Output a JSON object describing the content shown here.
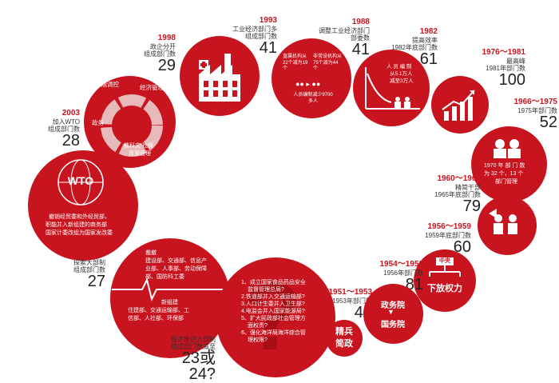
{
  "colors": {
    "red": "#c8141e",
    "dark": "#222222"
  },
  "events": {
    "e1993": {
      "year": "1993",
      "desc1": "工业经济部门多",
      "desc2": "组成部门数",
      "count": "41",
      "icon": "factory-icon"
    },
    "e1998": {
      "year": "1998",
      "desc1": "政企分开",
      "desc2": "组成部门数",
      "count": "29",
      "wheel": {
        "top": "宏观调控",
        "right": "经济管理",
        "left": "政务",
        "bottom1": "教科文 社保",
        "bottom2": "资源管理"
      }
    },
    "e1988": {
      "year": "1988",
      "desc1": "调整工业经济部门",
      "desc2": "部委数",
      "count": "41",
      "c1": "直属机构从22个减为19个",
      "c2": "非常设机构从75个减为44个",
      "c3": "人员编制减少9700多人"
    },
    "e1982": {
      "year": "1982",
      "desc1": "提高效率",
      "desc2": "1982年底部门数",
      "count": "61",
      "c1": "人 员 编 制",
      "c2": "从5.1万人",
      "c3": "减至3万人"
    },
    "e1976": {
      "year": "1976～1981",
      "desc1": "最高峰",
      "desc2": "1981年部门数",
      "count": "100"
    },
    "e1966": {
      "year": "1966～1975",
      "desc1": "1975年部门数",
      "count": "52",
      "c1": "1970 年 部 门 数",
      "c2": "为 32 个，13 个",
      "c3": "部门管理"
    },
    "e1960": {
      "year": "1960～1965",
      "desc1": "精简干部",
      "desc2": "1965年底部门数",
      "count": "79"
    },
    "e1956": {
      "year": "1956～1959",
      "desc1": "1959年底部门数",
      "count": "60"
    },
    "e1954": {
      "year": "1954～1956",
      "desc1": "1956年部门数",
      "count": "81",
      "box": "中央",
      "text": "下放权力"
    },
    "e1951": {
      "year": "1951～1953",
      "desc1": "1953年部门数",
      "count": "42",
      "b1": "政务院",
      "b2": "国务院",
      "side": "精兵简政"
    },
    "e2003": {
      "year": "2003",
      "desc1": "加入WTO",
      "desc2": "组成部门数",
      "count": "28",
      "globe": "WTO",
      "l1": "撤销经贸委和外经贸部，",
      "l2": "职能并入新组建的商务部",
      "l3": "国家计委改组为国家发改委"
    },
    "e2008": {
      "year": "2008",
      "desc1": "探索大部制",
      "desc2": "组成部门数",
      "count": "27",
      "t1": "裁撤",
      "t2": "建设部、交通部、信息产",
      "t3": "业部、人事部、劳动保障",
      "t4": "部、国防科工委",
      "n1": "新组建",
      "n2": "住建部、交通运输部、工",
      "n3": "信部、人社部、环保部"
    },
    "e2013": {
      "year": "2013",
      "desc1": "稳步推进大部制",
      "desc2": "组成部门数减至",
      "count": "23或24?",
      "q": [
        "1、成立国家食品药品安全",
        "监督管理总局?",
        "2.铁道部并入交通运输部?",
        "3.人口计生委并入卫生部?",
        "4.电监会并入国家能源局?",
        "5、扩大民政部社会管理方",
        "面权责?",
        "6、强化海洋局海洋综合管",
        "理权限?"
      ]
    }
  }
}
